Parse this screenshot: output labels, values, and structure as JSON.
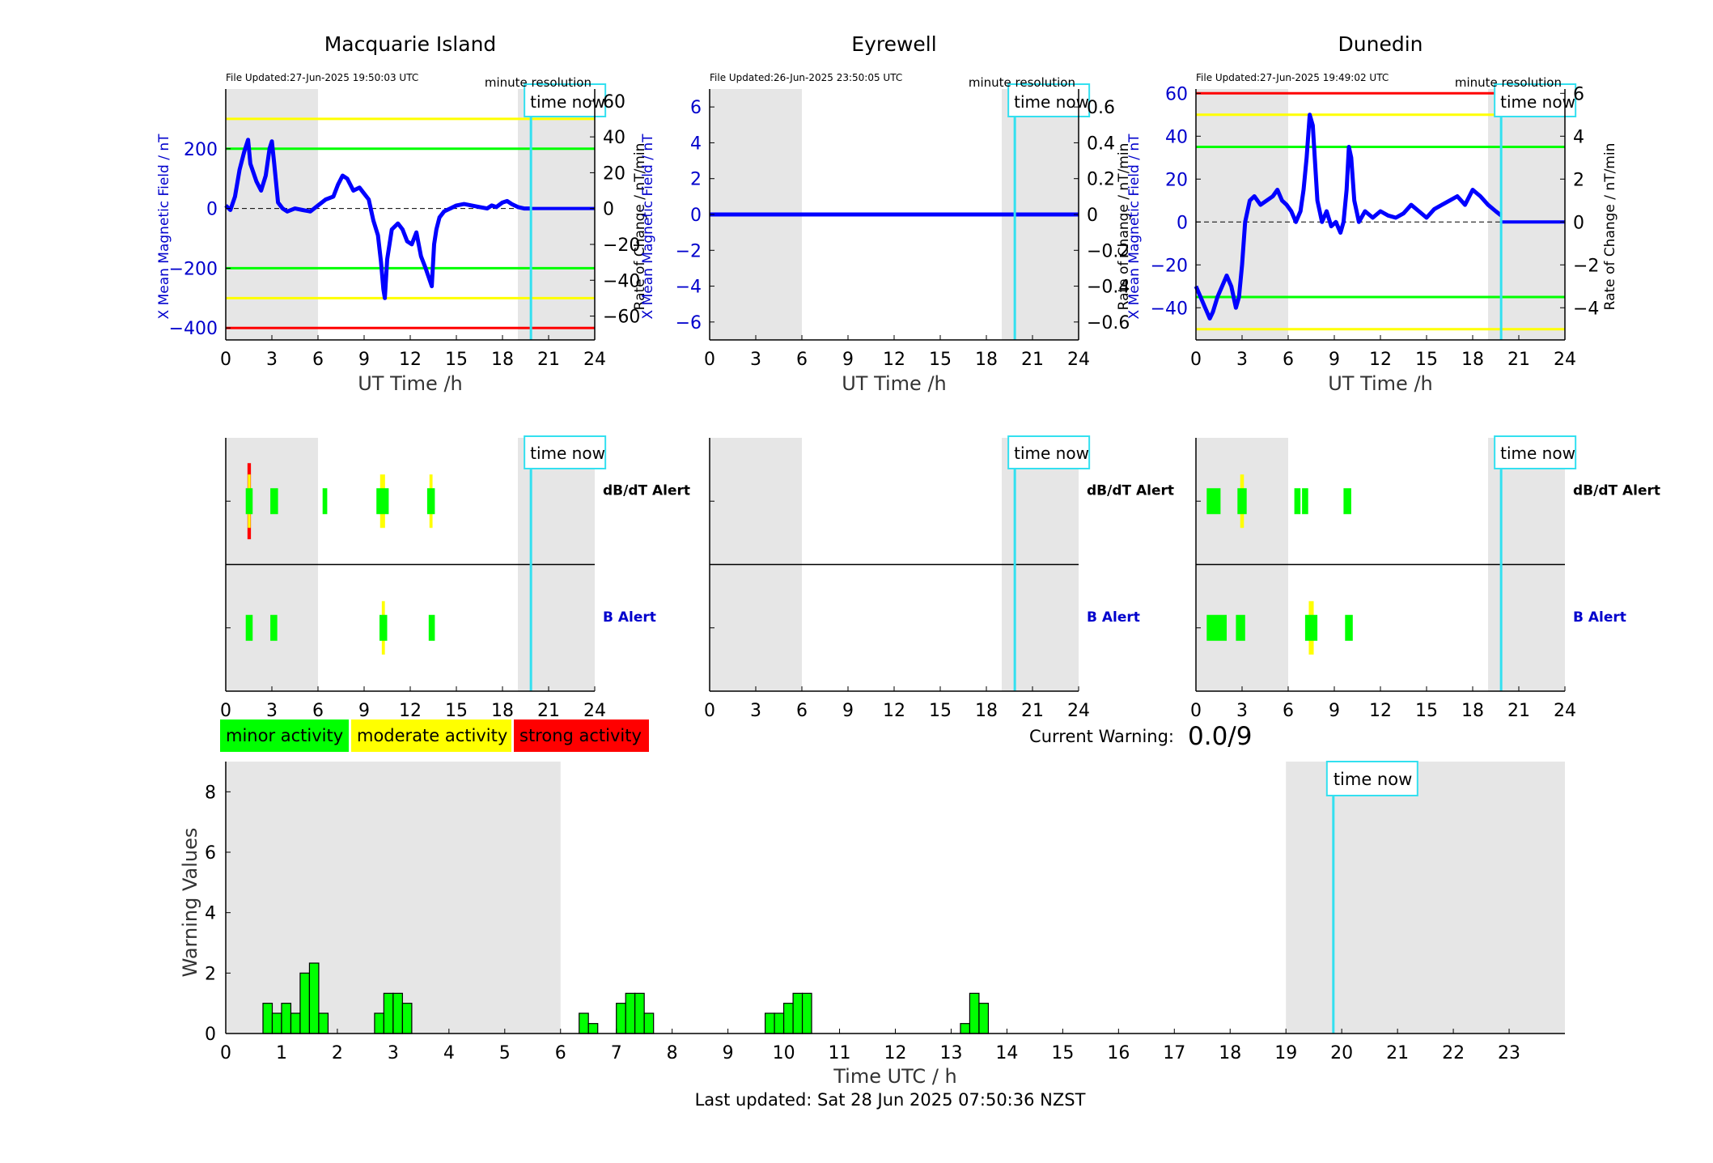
{
  "footer": {
    "last_updated": "Last updated: Sat 28 Jun 2025 07:50:36 NZST"
  },
  "legend": {
    "items": [
      {
        "label": "minor activity",
        "color": "#00ff00"
      },
      {
        "label": "moderate activity",
        "color": "#ffff00"
      },
      {
        "label": "strong activity",
        "color": "#ff0000"
      }
    ]
  },
  "current_warning": {
    "label": "Current Warning:",
    "value": "0.0/9"
  },
  "colors": {
    "field_line": "#0000ff",
    "rate_line": "#555555",
    "night_shade": "#e6e6e6",
    "time_now": "#33e0f0",
    "minor": "#00ff00",
    "moderate": "#ffff00",
    "strong": "#ff0000"
  },
  "chart_data": [
    {
      "type": "line",
      "title": "Macquarie Island",
      "file_updated": "File Updated:27-Jun-2025 19:50:03 UTC",
      "resolution_label": "minute resolution",
      "time_now_label": "time now",
      "time_now_h": 19.85,
      "night_shading_h": [
        [
          0,
          6
        ],
        [
          19,
          24
        ]
      ],
      "xlabel": "UT Time /h",
      "xlim": [
        0,
        24
      ],
      "xticks": [
        0,
        3,
        6,
        9,
        12,
        15,
        18,
        21,
        24
      ],
      "ylabel_left": "X Mean Magnetic Field / nT",
      "ylim_left": [
        -440,
        400
      ],
      "yticks_left": [
        -400,
        -200,
        0,
        200
      ],
      "ylabel_right": "Rate of Change / nT/min",
      "ylim_right": [
        -73.3,
        66.7
      ],
      "yticks_right": [
        -60,
        -40,
        -20,
        0,
        20,
        40,
        60
      ],
      "thresholds": [
        {
          "value": 300,
          "color": "#ffff00"
        },
        {
          "value": 200,
          "color": "#00ff00"
        },
        {
          "value": -200,
          "color": "#00ff00"
        },
        {
          "value": -300,
          "color": "#ffff00"
        },
        {
          "value": -400,
          "color": "#ff0000"
        }
      ],
      "series": [
        {
          "role": "field",
          "x": [
            0,
            0.3,
            0.6,
            0.9,
            1.2,
            1.45,
            1.6,
            1.8,
            2.0,
            2.3,
            2.6,
            2.85,
            3.0,
            3.15,
            3.4,
            3.7,
            4.0,
            4.5,
            5.0,
            5.5,
            6.0,
            6.5,
            7.0,
            7.3,
            7.6,
            7.9,
            8.3,
            8.7,
            9.0,
            9.3,
            9.6,
            9.9,
            10.1,
            10.25,
            10.35,
            10.5,
            10.8,
            11.2,
            11.5,
            11.8,
            12.1,
            12.4,
            12.7,
            13.0,
            13.2,
            13.4,
            13.55,
            13.7,
            13.9,
            14.2,
            14.6,
            15.0,
            15.5,
            16.0,
            16.5,
            17.0,
            17.3,
            17.6,
            18.0,
            18.3,
            18.6,
            19.0,
            19.4,
            19.85
          ],
          "y": [
            10,
            -5,
            40,
            130,
            190,
            230,
            150,
            120,
            90,
            60,
            110,
            200,
            225,
            150,
            20,
            0,
            -10,
            0,
            -5,
            -10,
            10,
            30,
            40,
            80,
            110,
            100,
            60,
            70,
            50,
            30,
            -40,
            -90,
            -180,
            -270,
            -300,
            -170,
            -70,
            -50,
            -70,
            -110,
            -120,
            -80,
            -160,
            -200,
            -230,
            -260,
            -120,
            -70,
            -30,
            -10,
            0,
            10,
            15,
            10,
            5,
            0,
            10,
            5,
            20,
            25,
            15,
            5,
            0,
            0
          ]
        },
        {
          "role": "field_flat",
          "x": [
            19.85,
            24
          ],
          "y": [
            0,
            0
          ]
        }
      ]
    },
    {
      "type": "line",
      "title": "Eyrewell",
      "file_updated": "File Updated:26-Jun-2025 23:50:05 UTC",
      "resolution_label": "minute resolution",
      "time_now_label": "time now",
      "time_now_h": 19.85,
      "night_shading_h": [
        [
          0,
          6
        ],
        [
          19,
          24
        ]
      ],
      "xlabel": "UT Time /h",
      "xlim": [
        0,
        24
      ],
      "xticks": [
        0,
        3,
        6,
        9,
        12,
        15,
        18,
        21,
        24
      ],
      "ylabel_left": "X Mean Magnetic Field / nT",
      "ylim_left": [
        -7,
        7
      ],
      "yticks_left": [
        -6,
        -4,
        -2,
        0,
        2,
        4,
        6
      ],
      "ylabel_right": "Rate of Change / nT/min",
      "ylim_right": [
        -0.7,
        0.7
      ],
      "yticks_right": [
        -0.6,
        -0.4,
        -0.2,
        0,
        0.2,
        0.4,
        0.6
      ],
      "thresholds": [],
      "series": [
        {
          "role": "field",
          "x": [
            0,
            24
          ],
          "y": [
            0,
            0
          ]
        }
      ]
    },
    {
      "type": "line",
      "title": "Dunedin",
      "file_updated": "File Updated:27-Jun-2025 19:49:02 UTC",
      "resolution_label": "minute resolution",
      "time_now_label": "time now",
      "time_now_h": 19.85,
      "night_shading_h": [
        [
          0,
          6
        ],
        [
          19,
          24
        ]
      ],
      "xlabel": "UT Time /h",
      "xlim": [
        0,
        24
      ],
      "xticks": [
        0,
        3,
        6,
        9,
        12,
        15,
        18,
        21,
        24
      ],
      "ylabel_left": "X Mean Magnetic Field / nT",
      "ylim_left": [
        -55,
        62
      ],
      "yticks_left": [
        -40,
        -20,
        0,
        20,
        40,
        60
      ],
      "ylabel_right": "Rate of Change / nT/min",
      "ylim_right": [
        -5.5,
        6.2
      ],
      "yticks_right": [
        -4,
        -2,
        0,
        2,
        4,
        6
      ],
      "thresholds": [
        {
          "value": 60,
          "color": "#ff0000"
        },
        {
          "value": 50,
          "color": "#ffff00"
        },
        {
          "value": 35,
          "color": "#00ff00"
        },
        {
          "value": -35,
          "color": "#00ff00"
        },
        {
          "value": -50,
          "color": "#ffff00"
        }
      ],
      "series": [
        {
          "role": "field",
          "x": [
            0,
            0.3,
            0.6,
            0.9,
            1.1,
            1.4,
            1.7,
            2.0,
            2.3,
            2.6,
            2.8,
            3.0,
            3.2,
            3.5,
            3.8,
            4.2,
            4.6,
            5.0,
            5.3,
            5.6,
            5.9,
            6.2,
            6.5,
            6.8,
            7.0,
            7.2,
            7.4,
            7.6,
            7.9,
            8.2,
            8.5,
            8.8,
            9.1,
            9.4,
            9.6,
            9.8,
            9.95,
            10.1,
            10.3,
            10.6,
            11.0,
            11.5,
            12.0,
            12.5,
            13.0,
            13.5,
            14.0,
            14.5,
            15.0,
            15.5,
            16.0,
            16.5,
            17.0,
            17.5,
            18.0,
            18.5,
            19.0,
            19.5,
            19.85
          ],
          "y": [
            -30,
            -35,
            -40,
            -45,
            -42,
            -35,
            -30,
            -25,
            -30,
            -40,
            -35,
            -20,
            0,
            10,
            12,
            8,
            10,
            12,
            15,
            10,
            8,
            5,
            0,
            5,
            15,
            30,
            50,
            45,
            10,
            0,
            5,
            -2,
            0,
            -5,
            0,
            15,
            35,
            30,
            10,
            0,
            5,
            2,
            5,
            3,
            2,
            4,
            8,
            5,
            2,
            6,
            8,
            10,
            12,
            8,
            15,
            12,
            8,
            5,
            3
          ]
        },
        {
          "role": "field_flat",
          "x": [
            19.85,
            24
          ],
          "y": [
            0,
            0
          ]
        }
      ]
    },
    {
      "type": "bar",
      "title": "dB/dT Alert and B Alert — Macquarie Island",
      "rows": [
        "dB/dT Alert",
        "B Alert"
      ],
      "time_now_label": "time now",
      "time_now_h": 19.85,
      "night_shading_h": [
        [
          0,
          6
        ],
        [
          19,
          24
        ]
      ],
      "xlim": [
        0,
        24
      ],
      "xticks": [
        0,
        3,
        6,
        9,
        12,
        15,
        18,
        21,
        24
      ],
      "alerts": [
        {
          "row": 0,
          "x0": 1.3,
          "x1": 1.75,
          "level": "strong"
        },
        {
          "row": 0,
          "x0": 2.9,
          "x1": 3.4,
          "level": "minor"
        },
        {
          "row": 0,
          "x0": 6.3,
          "x1": 6.6,
          "level": "minor"
        },
        {
          "row": 0,
          "x0": 9.8,
          "x1": 10.6,
          "level": "moderate"
        },
        {
          "row": 0,
          "x0": 13.1,
          "x1": 13.6,
          "level": "moderate"
        },
        {
          "row": 1,
          "x0": 1.3,
          "x1": 1.75,
          "level": "minor"
        },
        {
          "row": 1,
          "x0": 2.9,
          "x1": 3.35,
          "level": "minor"
        },
        {
          "row": 1,
          "x0": 10.0,
          "x1": 10.5,
          "level": "moderate"
        },
        {
          "row": 1,
          "x0": 13.2,
          "x1": 13.6,
          "level": "minor"
        }
      ]
    },
    {
      "type": "bar",
      "title": "dB/dT Alert and B Alert — Eyrewell",
      "rows": [
        "dB/dT Alert",
        "B Alert"
      ],
      "time_now_label": "time now",
      "time_now_h": 19.85,
      "night_shading_h": [
        [
          0,
          6
        ],
        [
          19,
          24
        ]
      ],
      "xlim": [
        0,
        24
      ],
      "xticks": [
        0,
        3,
        6,
        9,
        12,
        15,
        18,
        21,
        24
      ],
      "alerts": []
    },
    {
      "type": "bar",
      "title": "dB/dT Alert and B Alert — Dunedin",
      "rows": [
        "dB/dT Alert",
        "B Alert"
      ],
      "time_now_label": "time now",
      "time_now_h": 19.85,
      "night_shading_h": [
        [
          0,
          6
        ],
        [
          19,
          24
        ]
      ],
      "xlim": [
        0,
        24
      ],
      "xticks": [
        0,
        3,
        6,
        9,
        12,
        15,
        18,
        21,
        24
      ],
      "alerts": [
        {
          "row": 0,
          "x0": 0.7,
          "x1": 1.6,
          "level": "minor"
        },
        {
          "row": 0,
          "x0": 2.7,
          "x1": 3.3,
          "level": "moderate"
        },
        {
          "row": 0,
          "x0": 6.4,
          "x1": 6.8,
          "level": "minor"
        },
        {
          "row": 0,
          "x0": 6.9,
          "x1": 7.3,
          "level": "minor"
        },
        {
          "row": 0,
          "x0": 9.6,
          "x1": 10.1,
          "level": "minor"
        },
        {
          "row": 1,
          "x0": 0.7,
          "x1": 2.0,
          "level": "minor"
        },
        {
          "row": 1,
          "x0": 2.6,
          "x1": 3.2,
          "level": "minor"
        },
        {
          "row": 1,
          "x0": 7.1,
          "x1": 7.9,
          "level": "moderate"
        },
        {
          "row": 1,
          "x0": 9.7,
          "x1": 10.2,
          "level": "minor"
        }
      ]
    },
    {
      "type": "bar",
      "xlabel": "Time UTC / h",
      "ylabel": "Warning Values",
      "xlim": [
        0,
        24
      ],
      "ylim": [
        0,
        9
      ],
      "xticks": [
        0,
        1,
        2,
        3,
        4,
        5,
        6,
        7,
        8,
        9,
        10,
        11,
        12,
        13,
        14,
        15,
        16,
        17,
        18,
        19,
        20,
        21,
        22,
        23
      ],
      "yticks": [
        0,
        2,
        4,
        6,
        8
      ],
      "time_now_label": "time now",
      "time_now_h": 19.85,
      "night_shading_h": [
        [
          0,
          6
        ],
        [
          19,
          24
        ]
      ],
      "bar_width_h": 0.1667,
      "bar_starts_h": [
        0.667,
        0.833,
        1.0,
        1.167,
        1.333,
        1.5,
        1.667,
        2.667,
        2.833,
        3.0,
        3.167,
        6.333,
        6.5,
        7.0,
        7.167,
        7.333,
        7.5,
        9.667,
        9.833,
        10.0,
        10.167,
        10.333,
        13.167,
        13.333,
        13.5
      ],
      "values": [
        1.0,
        0.67,
        1.0,
        0.67,
        2.0,
        2.33,
        0.67,
        0.67,
        1.33,
        1.33,
        1.0,
        0.67,
        0.33,
        1.0,
        1.33,
        1.33,
        0.67,
        0.67,
        0.67,
        1.0,
        1.33,
        1.33,
        0.33,
        1.33,
        1.0
      ]
    }
  ]
}
